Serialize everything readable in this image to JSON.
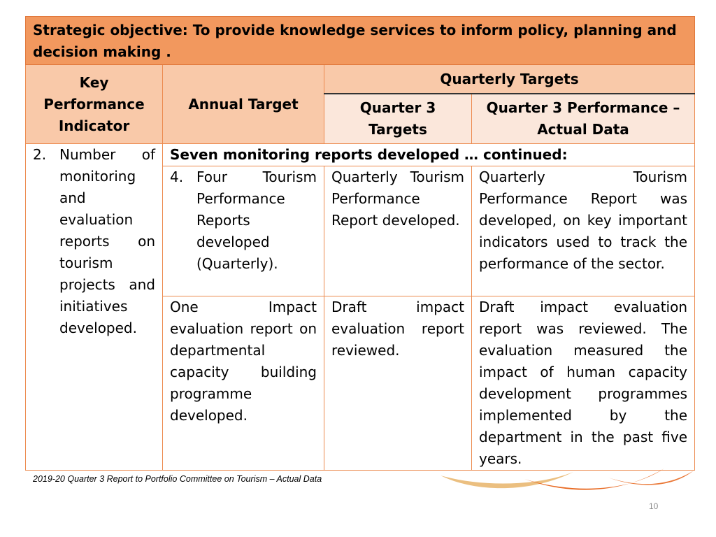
{
  "objective": "Strategic objective: To provide knowledge services to inform policy, planning and decision making .",
  "headers": {
    "kpi": "Key Performance Indicator",
    "annual_target": "Annual Target",
    "quarterly_targets": "Quarterly Targets",
    "q3_targets": "Quarter 3 Targets",
    "q3_performance": "Quarter 3 Performance – Actual Data"
  },
  "kpi_item": {
    "number": "2.",
    "text": "Number of monitoring and evaluation reports on tourism projects and initiatives developed."
  },
  "continued": "Seven monitoring reports developed … continued:",
  "rows": [
    {
      "annual_number": "4.",
      "annual": "Four Tourism Performance Reports developed (Quarterly).",
      "q3_target": "Quarterly Tourism Performance Report developed.",
      "q3_actual": "Quarterly Tourism Performance Report was developed, on key important indicators used to track the performance of the sector."
    },
    {
      "annual_number": "",
      "annual": "One Impact evaluation report on departmental capacity building programme developed.",
      "q3_target": "Draft impact evaluation report reviewed.",
      "q3_actual": "Draft impact evaluation report was reviewed. The evaluation measured the impact of human capacity development programmes implemented by the department in the past five years."
    }
  ],
  "footer": "2019-20 Quarter 3 Report to Portfolio Committee on Tourism  – Actual Data",
  "page_number": "10",
  "colors": {
    "objective_bg": "#f2985e",
    "header_bg": "#f9c9a9",
    "subheader_bg": "#fbe7db",
    "border": "#ec8a4e"
  }
}
